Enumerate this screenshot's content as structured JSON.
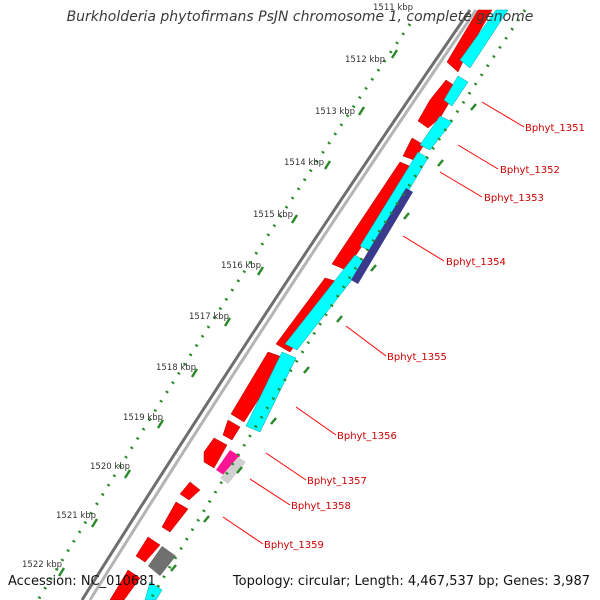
{
  "title": "Burkholderia phytofirmans PsJN chromosome 1, complete genome",
  "accession": "Accession: NC_010681",
  "topology": "Topology: circular; Length: 4,467,537 bp; Genes: 3,987",
  "scale_labels": [
    "1511 kbp",
    "1512 kbp",
    "1513 kbp",
    "1514 kbp",
    "1515 kbp",
    "1516 kbp",
    "1517 kbp",
    "1518 kbp",
    "1519 kbp",
    "1520 kbp",
    "1521 kbp",
    "1522 kbp"
  ],
  "gene_labels": [
    "Bphyt_1351",
    "Bphyt_1352",
    "Bphyt_1353",
    "Bphyt_1354",
    "Bphyt_1355",
    "Bphyt_1356",
    "Bphyt_1357",
    "Bphyt_1358",
    "Bphyt_1359"
  ],
  "colors": {
    "backbone": "#8c8c8c",
    "forward_gene": "#ff0000",
    "cds": "#00ffff",
    "dark_feature": "#3a3a8c",
    "magenta_feature": "#ff1493",
    "grey_feature": "#707070",
    "tick": "#2a8a2a",
    "label_line": "#ff0000"
  }
}
